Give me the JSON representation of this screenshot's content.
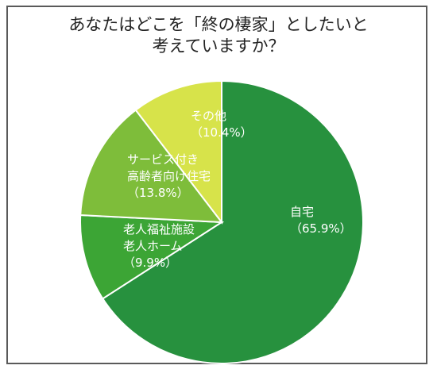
{
  "title": {
    "line1": "あなたはどこを「終の棲家」としたいと",
    "line2": "考えていますか？"
  },
  "colors": {
    "border": "#5a5a5a",
    "slice_lines": "#ffffff"
  },
  "chart_data": {
    "type": "pie",
    "title": "あなたはどこを「終の棲家」としたいと考えていますか？",
    "start_angle_deg": 0,
    "direction": "clockwise",
    "slices": [
      {
        "label_lines": [
          "自宅"
        ],
        "pct_text": "（65.9%）",
        "value": 65.9,
        "color": "#27913e",
        "text_color": "#ffffff"
      },
      {
        "label_lines": [
          "老人福祉施設",
          "老人ホーム"
        ],
        "pct_text": "（9.9%）",
        "value": 9.9,
        "color": "#3ca535",
        "text_color": "#ffffff"
      },
      {
        "label_lines": [
          "サービス付き",
          "高齢者向け住宅"
        ],
        "pct_text": "（13.8%）",
        "value": 13.8,
        "color": "#7ebd3a",
        "text_color": "#333333"
      },
      {
        "label_lines": [
          "その他"
        ],
        "pct_text": "（10.4%）",
        "value": 10.4,
        "color": "#d7e34a",
        "text_color": "#333333"
      }
    ]
  }
}
